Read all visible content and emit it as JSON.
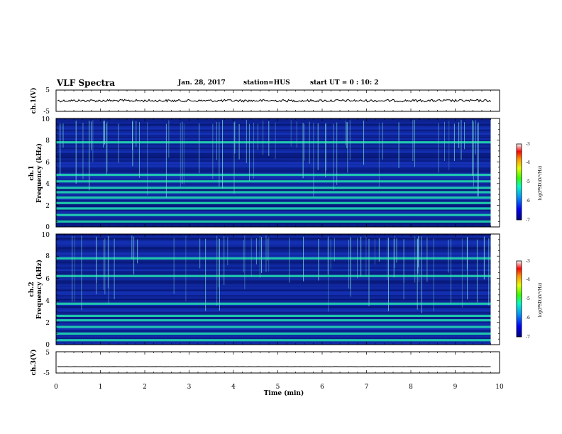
{
  "header": {
    "title": "VLF Spectra",
    "date": "Jan. 28, 2017",
    "station": "station=HUS",
    "start_ut": "start UT =  0 : 10: 2"
  },
  "chart_data": [
    {
      "type": "line",
      "panel": "ch1-waveform",
      "ylabel": "ch.1(V)",
      "ylim": [
        -5,
        5
      ],
      "y_ticks": [
        "5",
        "-5"
      ],
      "series": [
        {
          "values": [
            0,
            0
          ]
        }
      ]
    },
    {
      "type": "heatmap",
      "panel": "ch1-spectrogram",
      "ylabel_line1": "ch.1",
      "ylabel_line2": "Frequency (kHz)",
      "ylim": [
        0,
        10
      ],
      "y_ticks": [
        "0",
        "2",
        "4",
        "6",
        "8",
        "10"
      ],
      "bright_bands_khz": [
        0.5,
        1.1,
        1.7,
        2.2,
        2.7,
        3.2,
        3.6,
        4.2,
        4.8,
        7.8
      ],
      "colorbar": {
        "label": "log(PSD)(V²/Hz)",
        "ticks": [
          "-3",
          "-4",
          "-5",
          "-6",
          "-7"
        ],
        "range": [
          -7,
          -3
        ]
      }
    },
    {
      "type": "heatmap",
      "panel": "ch2-spectrogram",
      "ylabel_line1": "ch.2",
      "ylabel_line2": "Frequency (kHz)",
      "ylim": [
        0,
        10
      ],
      "y_ticks": [
        "0",
        "2",
        "4",
        "6",
        "8",
        "10"
      ],
      "bright_bands_khz": [
        0.4,
        1.0,
        1.6,
        2.2,
        2.6,
        3.7,
        6.2,
        7.8
      ],
      "colorbar": {
        "label": "log(PSD)(V²/Hz)",
        "ticks": [
          "-3",
          "-4",
          "-5",
          "-6",
          "-7"
        ],
        "range": [
          -7,
          -3
        ]
      }
    },
    {
      "type": "line",
      "panel": "ch3-waveform",
      "ylabel": "ch.3(V)",
      "ylim": [
        -5,
        5
      ],
      "y_ticks": [
        "5",
        "-5"
      ],
      "series": [
        {
          "values": [
            -2,
            -2
          ]
        }
      ]
    }
  ],
  "time_axis": {
    "label": "Time (min)",
    "ticks": [
      "0",
      "1",
      "2",
      "3",
      "4",
      "5",
      "6",
      "7",
      "8",
      "9",
      "10"
    ],
    "xlim": [
      0,
      10
    ],
    "data_end_min": 9.8
  },
  "colors": {
    "background": "#ffffff",
    "axis": "#000000",
    "spec_low": "#000a55",
    "spec_mid": "#1a3cd0",
    "spec_band": "#22e0b0",
    "spec_line": "#7fdfe0"
  }
}
